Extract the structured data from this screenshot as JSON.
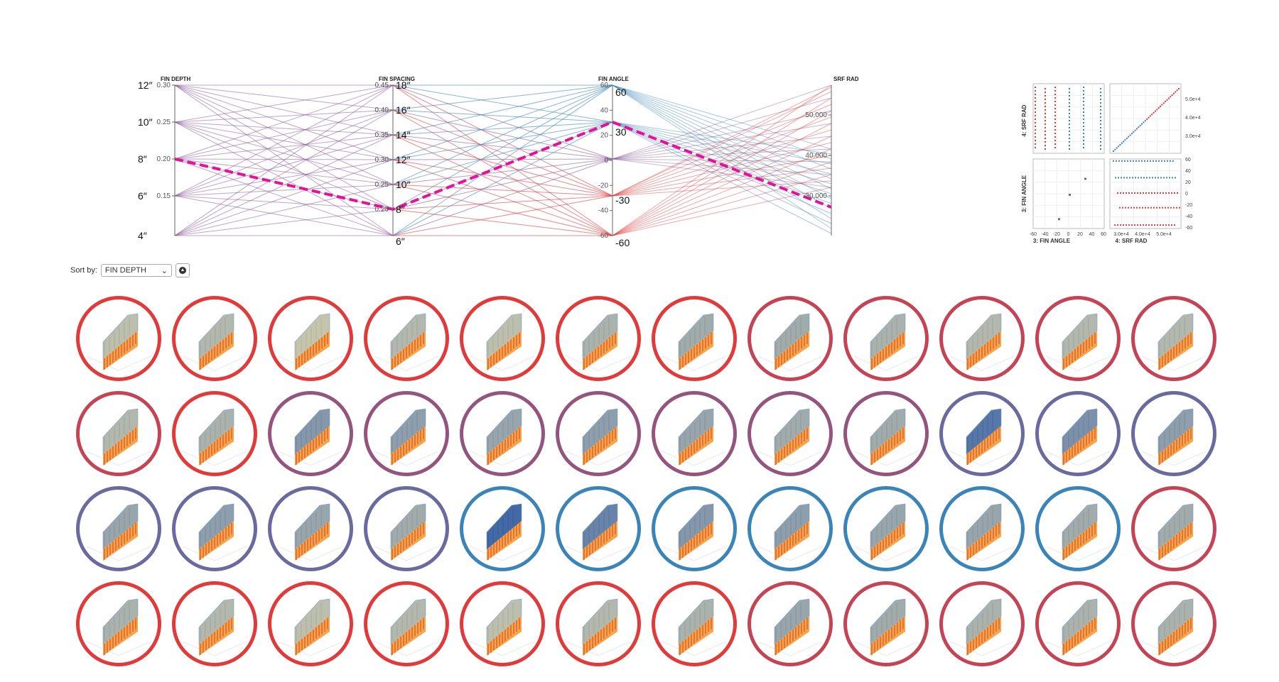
{
  "parallel_coords": {
    "axes": [
      {
        "key": "fin_depth",
        "title": "FIN DEPTH",
        "ticks": [
          "0.30",
          "0.25",
          "0.20",
          "0.15"
        ],
        "big_ticks": [
          "12″",
          "10″",
          "8″",
          "6″",
          "4″"
        ]
      },
      {
        "key": "fin_spacing",
        "title": "FIN SPACING",
        "ticks": [
          "0.45",
          "0.40",
          "0.35",
          "0.30",
          "0.25",
          "0.20"
        ],
        "big_ticks": [
          "18″",
          "16″",
          "14″",
          "12″",
          "10″",
          "8″",
          "6″"
        ]
      },
      {
        "key": "fin_angle",
        "title": "FIN ANGLE",
        "ticks": [
          "60",
          "40",
          "20",
          "0",
          "-20",
          "-40",
          "-60"
        ],
        "big_ticks": [
          "60",
          "30",
          "-30",
          "-60"
        ]
      },
      {
        "key": "srf_rad",
        "title": "SRF RAD",
        "ticks": [
          "50,000",
          "40,000",
          "30,000"
        ]
      }
    ],
    "highlight_color": "#e6109a",
    "line_colors": {
      "low": "#e03a3a",
      "mid": "#8a5a9a",
      "high": "#3a84b8"
    }
  },
  "scatter_matrix": {
    "y_labels": [
      "4: SRF RAD",
      "3: FIN ANGLE"
    ],
    "x_labels": [
      "3: FIN ANGLE",
      "4: SRF RAD"
    ],
    "srf_ticks": [
      "5.0e+4",
      "4.0e+4",
      "3.0e+4"
    ],
    "angle_ticks_right": [
      "60",
      "40",
      "20",
      "0",
      "-20",
      "-40",
      "-60"
    ],
    "angle_ticks_bottom": [
      "-60",
      "-40",
      "-20",
      "0",
      "20",
      "40",
      "60"
    ],
    "srf_ticks_bottom": [
      "3.0e+4",
      "4.0e+4",
      "5.0e+4"
    ]
  },
  "sort": {
    "label": "Sort by:",
    "selected": "FIN DEPTH",
    "chevron": "⌄"
  },
  "design_grid": {
    "ring_colors": [
      "#e03a3a",
      "#e03a3a",
      "#e03a3a",
      "#e03a3a",
      "#e03a3a",
      "#e03a3a",
      "#e03a3a",
      "#c44455",
      "#c44455",
      "#c44455",
      "#c44455",
      "#c44455",
      "#c44455",
      "#e03a3a",
      "#93547e",
      "#93547e",
      "#93547e",
      "#93547e",
      "#93547e",
      "#93547e",
      "#93547e",
      "#6a6a9e",
      "#6a6a9e",
      "#6a6a9e",
      "#6a6a9e",
      "#6a6a9e",
      "#6a6a9e",
      "#6a6a9e",
      "#3a84b8",
      "#3a84b8",
      "#3a84b8",
      "#3a84b8",
      "#3a84b8",
      "#3a84b8",
      "#3a84b8",
      "#c44455",
      "#e03a3a",
      "#e03a3a",
      "#e03a3a",
      "#e03a3a",
      "#e03a3a",
      "#e03a3a",
      "#e03a3a",
      "#c44455",
      "#c44455",
      "#c44455",
      "#c44455",
      "#c44455"
    ],
    "blueness": [
      0.3,
      0.35,
      0.25,
      0.35,
      0.3,
      0.4,
      0.45,
      0.45,
      0.4,
      0.35,
      0.35,
      0.35,
      0.35,
      0.4,
      0.6,
      0.55,
      0.5,
      0.55,
      0.5,
      0.45,
      0.45,
      0.85,
      0.65,
      0.55,
      0.5,
      0.55,
      0.5,
      0.45,
      0.95,
      0.75,
      0.6,
      0.55,
      0.5,
      0.5,
      0.45,
      0.45,
      0.4,
      0.35,
      0.3,
      0.35,
      0.3,
      0.35,
      0.4,
      0.5,
      0.45,
      0.4,
      0.4,
      0.4
    ]
  }
}
